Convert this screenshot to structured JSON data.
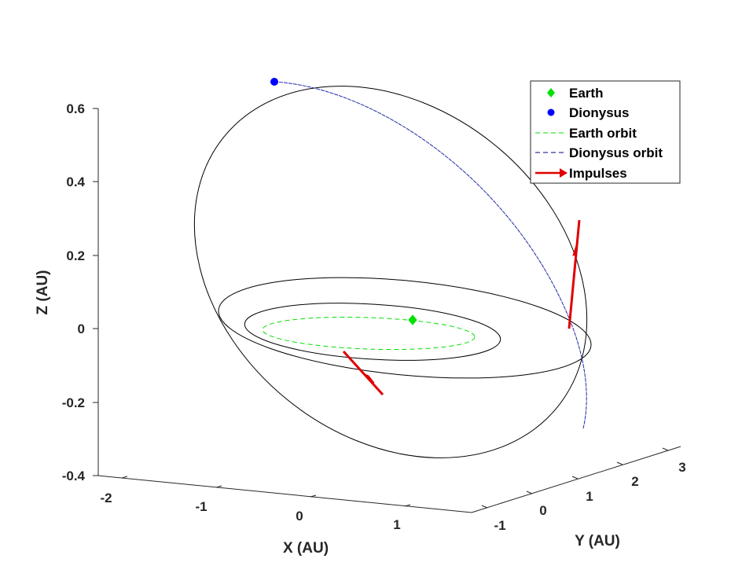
{
  "chart_data": {
    "type": "line",
    "projection": "3d",
    "title": "",
    "xlabel": "X (AU)",
    "ylabel": "Y (AU)",
    "zlabel": "Z (AU)",
    "xlim": [
      -2.4,
      1.9
    ],
    "ylim": [
      -1.6,
      3.5
    ],
    "zlim": [
      -0.4,
      0.62
    ],
    "x_ticks": [
      -2,
      -1,
      0,
      1
    ],
    "y_ticks": [
      -1,
      0,
      1,
      2,
      3
    ],
    "z_ticks": [
      -0.4,
      -0.2,
      0,
      0.2,
      0.4,
      0.6
    ],
    "x_tick_labels": [
      "-2",
      "-1",
      "0",
      "1"
    ],
    "y_tick_labels": [
      "-1",
      "0",
      "1",
      "2",
      "3"
    ],
    "z_tick_labels": [
      "-0.4",
      "-0.2",
      "0",
      "0.2",
      "0.4",
      "0.6"
    ],
    "grid": false,
    "legend_position": "top-right",
    "legend": [
      {
        "label": "Earth",
        "marker": "diamond",
        "color": "#00e000"
      },
      {
        "label": "Dionysus",
        "marker": "circle",
        "color": "#0000ff"
      },
      {
        "label": "Earth orbit",
        "line": "dashed",
        "color": "#00e000"
      },
      {
        "label": "Dionysus orbit",
        "line": "dashed",
        "color": "#00008b"
      },
      {
        "label": "Impulses",
        "line": "arrow",
        "color": "#e00000"
      }
    ],
    "series": [
      {
        "name": "Earth orbit",
        "kind": "orbit",
        "color": "#00e000",
        "style": "dashed",
        "semi_major_axis": 1.0,
        "eccentricity": 0.0,
        "inclination_deg": 0.0
      },
      {
        "name": "Dionysus orbit",
        "kind": "orbit",
        "color": "#00008b",
        "style": "dashed",
        "portion": "upper arc of the inclined transfer ellipse"
      }
    ],
    "transfer_orbits": [
      {
        "description": "inner transfer ellipse",
        "color": "#000000"
      },
      {
        "description": "middle transfer ellipse",
        "color": "#000000"
      },
      {
        "description": "highly inclined transfer ellipse",
        "color": "#000000"
      }
    ],
    "points": [
      {
        "name": "Earth",
        "x": -0.18,
        "y": 0.98,
        "z": 0.0,
        "marker": "diamond",
        "color": "#00e000"
      },
      {
        "name": "Dionysus",
        "x": -1.1,
        "y": 1.6,
        "z": 0.62,
        "marker": "circle",
        "color": "#0000ff"
      }
    ],
    "impulses": [
      {
        "name": "Impulses",
        "tail": {
          "x": -0.6,
          "y": -0.1,
          "z": -0.06
        },
        "direction": "down and outward",
        "color": "#e00000"
      },
      {
        "name": "Impulses",
        "tail": {
          "x": 1.5,
          "y": 1.6,
          "z": 0.0
        },
        "direction": "up",
        "color": "#e00000"
      }
    ]
  }
}
